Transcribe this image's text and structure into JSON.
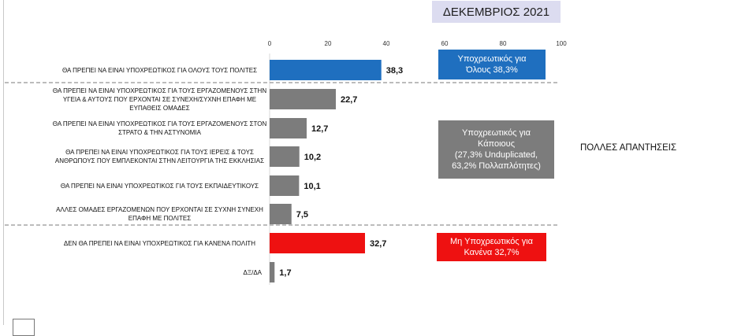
{
  "header": {
    "title": "ΔΕΚΕΜΒΡΙΟΣ 2021"
  },
  "chart_data": {
    "type": "bar",
    "orientation": "horizontal",
    "xlim": [
      0,
      100
    ],
    "xticks": [
      0,
      20,
      40,
      60,
      80,
      100
    ],
    "grid": false,
    "categories": [
      "ΘΑ ΠΡΕΠΕΙ ΝΑ ΕΙΝΑΙ ΥΠΟΧΡΕΩΤΙΚΟΣ ΓΙΑ ΟΛΟΥΣ ΤΟΥΣ ΠΟΛΙΤΕΣ",
      "ΘΑ ΠΡΕΠΕΙ ΝΑ ΕΙΝΑΙ ΥΠΟΧΡΕΩΤΙΚΟΣ ΓΙΑ ΤΟΥΣ ΕΡΓΑΖΟΜΕΝΟΥΣ ΣΤΗΝ ΥΓΕΙΑ & ΑΥΤΟΥΣ ΠΟΥ ΕΡΧΟΝΤΑΙ ΣΕ ΣΥΝΕΧΗ/ΣΥΧΝΗ ΕΠΑΦΗ ΜΕ ΕΥΠΑΘΕΙΣ ΟΜΑΔΕΣ",
      "ΘΑ ΠΡΕΠΕΙ ΝΑ ΕΙΝΑΙ ΥΠΟΧΡΕΩΤΙΚΟΣ ΓΙΑ ΤΟΥΣ ΕΡΓΑΖΟΜΕΝΟΥΣ ΣΤΟΝ ΣΤΡΑΤΟ & ΤΗΝ ΑΣΤΥΝΟΜΙΑ",
      "ΘΑ ΠΡΕΠΕΙ ΝΑ ΕΙΝΑΙ ΥΠΟΧΡΕΩΤΙΚΟΣ ΓΙΑ ΤΟΥΣ ΙΕΡΕΙΣ & ΤΟΥΣ ΑΝΘΡΩΠΟΥΣ ΠΟΥ ΕΜΠΛΕΚΟΝΤΑΙ ΣΤΗΝ ΛΕΙΤΟΥΡΓΙΑ ΤΗΣ ΕΚΚΛΗΣΙΑΣ",
      "ΘΑ ΠΡΕΠΕΙ ΝΑ ΕΙΝΑΙ ΥΠΟΧΡΕΩΤΙΚΟΣ ΓΙΑ ΤΟΥΣ ΕΚΠΑΙΔΕΥΤΙΚΟΥΣ",
      "ΑΛΛΕΣ ΟΜΑΔΕΣ ΕΡΓΑΖΟΜΕΝΩΝ ΠΟΥ ΕΡΧΟΝΤΑΙ ΣΕ ΣΥΧΝΗ ΣΥΝΕΧΗ ΕΠΑΦΗ ΜΕ ΠΟΛΙΤΕΣ",
      "ΔΕΝ ΘΑ ΠΡΕΠΕΙ ΝΑ ΕΙΝΑΙ ΥΠΟΧΡΕΩΤΙΚΟΣ ΓΙΑ ΚΑΝΕΝΑ ΠΟΛΙΤΗ",
      "ΔΞ/ΔΑ"
    ],
    "values": [
      38.3,
      22.7,
      12.7,
      10.2,
      10.1,
      7.5,
      32.7,
      1.7
    ],
    "value_labels": [
      "38,3",
      "22,7",
      "12,7",
      "10,2",
      "10,1",
      "7,5",
      "32,7",
      "1,7"
    ],
    "bar_colors": [
      "#1f6fbf",
      "#7c7c7c",
      "#7c7c7c",
      "#7c7c7c",
      "#7c7c7c",
      "#7c7c7c",
      "#ee1111",
      "#7c7c7c"
    ]
  },
  "annotations": {
    "all_line1": "Υποχρεωτικός για",
    "all_line2": "Όλους 38,3%",
    "some_line1": "Υποχρεωτικός για",
    "some_line2": "Κάποιους",
    "some_line3": "(27,3% Unduplicated,",
    "some_line4": "63,2% Πολλαπλότητες)",
    "none_line1": "Μη Υποχρεωτικός για",
    "none_line2": "Κανένα 32,7%"
  },
  "side_note": "ΠΟΛΛΕΣ ΑΠΑΝΤΗΣΕΙΣ",
  "colors": {
    "blue": "#1f6fbf",
    "gray": "#7c7c7c",
    "red": "#ee1111",
    "header_bg": "#dcdcf0"
  }
}
